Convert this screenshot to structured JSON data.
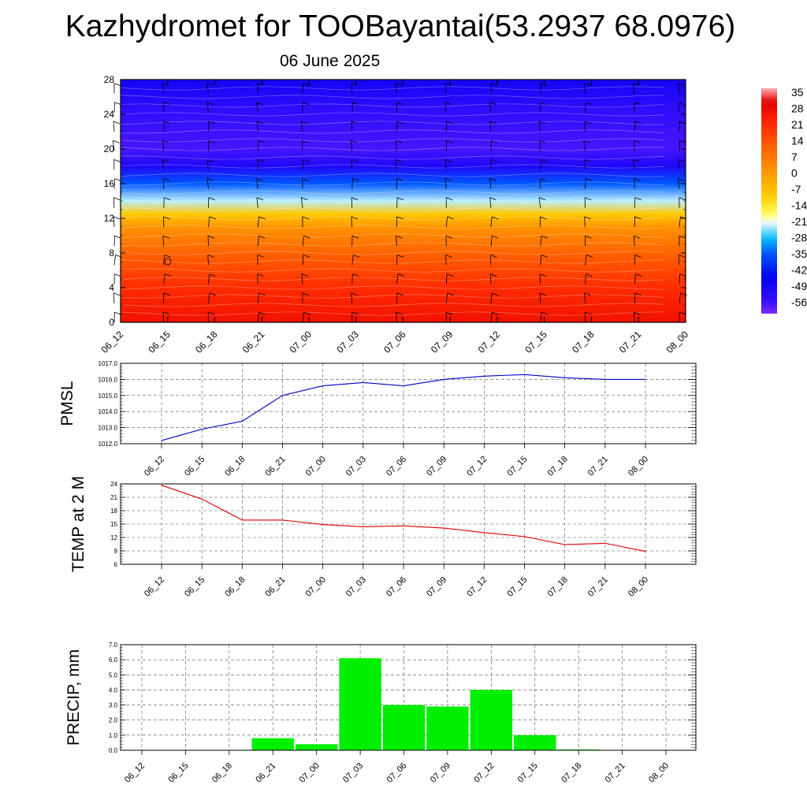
{
  "title": "Kazhydromet for TOOBayantai(53.2937 68.0976)",
  "subtitle": "06 June 2025",
  "time_labels": [
    "06_12",
    "06_15",
    "06_18",
    "06_21",
    "07_00",
    "07_03",
    "07_06",
    "07_09",
    "07_12",
    "07_15",
    "07_18",
    "07_21",
    "08_00"
  ],
  "colors": {
    "pmsl_line": "#0000cc",
    "temp_line": "#e00000",
    "precip_bar": "#00ee00",
    "grid": "#555555"
  },
  "chart_data": [
    {
      "type": "heatmap",
      "x": [
        "06_12",
        "06_15",
        "06_18",
        "06_21",
        "07_00",
        "07_03",
        "07_06",
        "07_09",
        "07_12",
        "07_15",
        "07_18",
        "07_21",
        "08_00"
      ],
      "y_ticks": [
        0,
        4,
        8,
        12,
        16,
        20,
        24,
        28
      ],
      "ylim": [
        0,
        28
      ],
      "colorbar": {
        "ticks": [
          "35",
          "28",
          "21",
          "14",
          "7",
          "0",
          "-7",
          "-14",
          "-21",
          "-28",
          "-35",
          "-42",
          "-49",
          "-56"
        ],
        "range": [
          -60,
          38
        ]
      },
      "profile": [
        {
          "level": 0,
          "value": 28
        },
        {
          "level": 4,
          "value": 22
        },
        {
          "level": 8,
          "value": 12
        },
        {
          "level": 11,
          "value": 2
        },
        {
          "level": 12.5,
          "value": -8
        },
        {
          "level": 14,
          "value": -22
        },
        {
          "level": 16,
          "value": -34
        },
        {
          "level": 18,
          "value": -50
        },
        {
          "level": 20,
          "value": -56
        },
        {
          "level": 24,
          "value": -54
        },
        {
          "level": 28,
          "value": -48
        }
      ],
      "overlay": "wind-barbs"
    },
    {
      "type": "line",
      "ylabel": "PMSL",
      "categories": [
        "06_12",
        "06_15",
        "06_18",
        "06_21",
        "07_00",
        "07_03",
        "07_06",
        "07_09",
        "07_12",
        "07_15",
        "07_18",
        "07_21",
        "08_00"
      ],
      "values": [
        1012.2,
        1012.9,
        1013.4,
        1015.0,
        1015.6,
        1015.8,
        1015.6,
        1016.0,
        1016.2,
        1016.3,
        1016.1,
        1016.0,
        1016.0
      ],
      "ylim": [
        1012.0,
        1017.0
      ],
      "y_ticks": [
        "1012.0",
        "1013.0",
        "1014.0",
        "1015.0",
        "1016.0",
        "1017.0"
      ],
      "grid": true
    },
    {
      "type": "line",
      "ylabel": "TEMP at 2 M",
      "categories": [
        "06_12",
        "06_15",
        "06_18",
        "06_21",
        "07_00",
        "07_03",
        "07_06",
        "07_09",
        "07_12",
        "07_15",
        "07_18",
        "07_21",
        "08_00"
      ],
      "values": [
        23.7,
        20.6,
        15.9,
        15.9,
        14.9,
        14.4,
        14.6,
        14.1,
        13.1,
        12.2,
        10.4,
        10.7,
        8.9
      ],
      "ylim": [
        6,
        24
      ],
      "y_ticks": [
        "6",
        "9",
        "12",
        "15",
        "18",
        "21",
        "24"
      ],
      "grid": true
    },
    {
      "type": "bar",
      "ylabel": "PRECIP, mm",
      "categories": [
        "06_12",
        "06_15",
        "06_18",
        "06_21",
        "07_00",
        "07_03",
        "07_06",
        "07_09",
        "07_12",
        "07_15",
        "07_18",
        "07_21",
        "08_00"
      ],
      "values": [
        0,
        0,
        0,
        0.8,
        0.4,
        6.1,
        3.0,
        2.9,
        4.0,
        1.0,
        0.05,
        0,
        0
      ],
      "ylim": [
        0,
        7.0
      ],
      "y_ticks": [
        "0.0",
        "1.0",
        "2.0",
        "3.0",
        "4.0",
        "5.0",
        "6.0",
        "7.0"
      ],
      "grid": true
    }
  ]
}
